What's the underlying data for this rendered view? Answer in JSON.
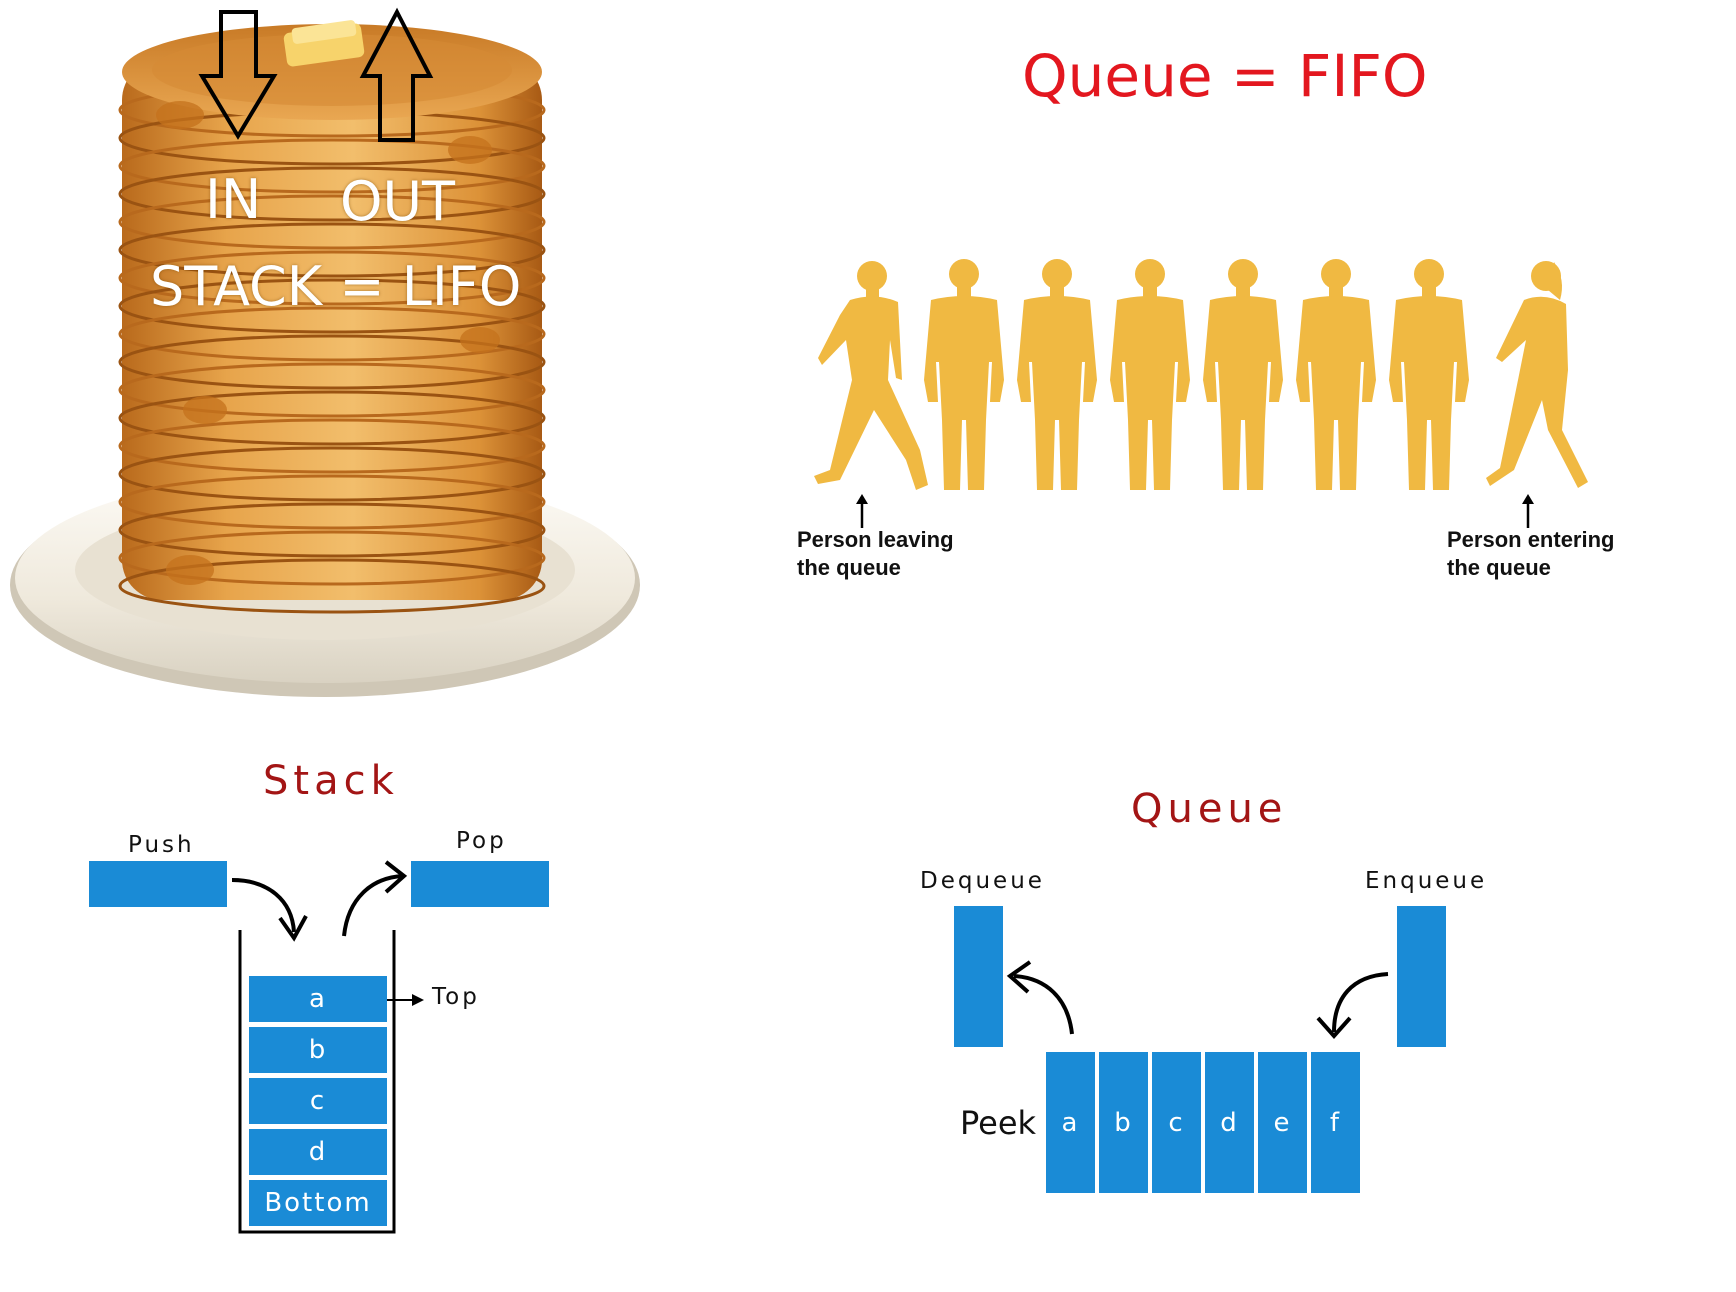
{
  "stack_photo": {
    "in_label": "IN",
    "out_label": "OUT",
    "title": "STACK = LIFO"
  },
  "queue_photo": {
    "title": "Queue = FIFO",
    "leaving_line1": "Person leaving",
    "leaving_line2": "the queue",
    "entering_line1": "Person entering",
    "entering_line2": "the queue",
    "figure_color": "#f0b942"
  },
  "stack_diagram": {
    "title": "Stack",
    "push_label": "Push",
    "pop_label": "Pop",
    "top_label": "Top",
    "items": [
      "a",
      "b",
      "c",
      "d",
      "Bottom"
    ]
  },
  "queue_diagram": {
    "title": "Queue",
    "dequeue_label": "Dequeue",
    "enqueue_label": "Enqueue",
    "peek_label": "Peek",
    "items": [
      "a",
      "b",
      "c",
      "d",
      "e",
      "f"
    ]
  },
  "colors": {
    "accent_blue": "#1a8bd6",
    "title_red": "#e3171f",
    "subtitle_red": "#a31515"
  }
}
